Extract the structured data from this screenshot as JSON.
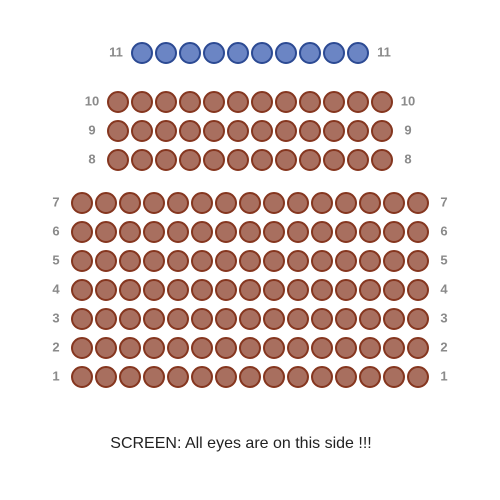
{
  "sections": [
    {
      "fill": "#6b85c4",
      "stroke": "#2c4a93",
      "rows": [
        {
          "label": "11",
          "seats": 10
        }
      ]
    },
    {
      "fill": "#a86f5f",
      "stroke": "#85361f",
      "rows": [
        {
          "label": "10",
          "seats": 12
        },
        {
          "label": "9",
          "seats": 12
        },
        {
          "label": "8",
          "seats": 12
        }
      ]
    },
    {
      "fill": "#a86f5f",
      "stroke": "#85361f",
      "rows": [
        {
          "label": "7",
          "seats": 15
        },
        {
          "label": "6",
          "seats": 15
        },
        {
          "label": "5",
          "seats": 15
        },
        {
          "label": "4",
          "seats": 15
        },
        {
          "label": "3",
          "seats": 15
        },
        {
          "label": "2",
          "seats": 15
        },
        {
          "label": "1",
          "seats": 15
        }
      ]
    }
  ],
  "screen": "SCREEN: All eyes are on this side !!!"
}
